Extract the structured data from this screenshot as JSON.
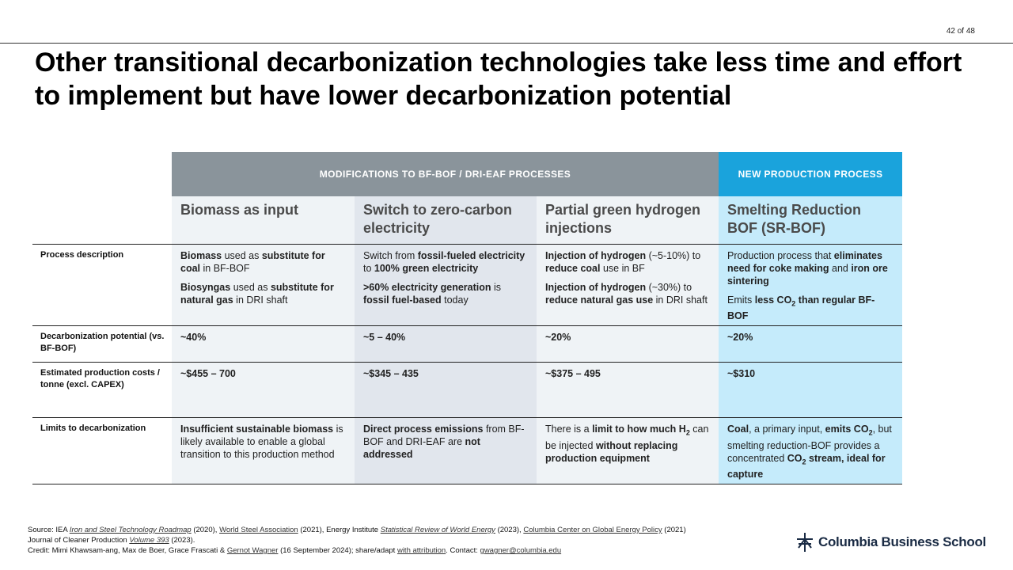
{
  "page_number": "42 of 48",
  "title": "Other transitional decarbonization technologies take less time and effort to implement but have lower decarbonization potential",
  "table": {
    "group_headers": {
      "modifications": "MODIFICATIONS TO BF-BOF / DRI-EAF PROCESSES",
      "new_process": "NEW PRODUCTION PROCESS"
    },
    "columns": [
      "Biomass as input",
      "Switch to zero-carbon electricity",
      "Partial green hydrogen injections",
      "Smelting Reduction BOF (SR-BOF)"
    ],
    "row_labels": {
      "process": "Process description",
      "decarb": "Decarbonization potential (vs. BF-BOF)",
      "costs": "Estimated production costs / tonne (excl. CAPEX)",
      "limits": "Limits to decarbonization"
    },
    "process": {
      "biomass": {
        "p1": [
          {
            "t": "Biomass",
            "b": true
          },
          {
            "t": " used as ",
            "b": false
          },
          {
            "t": "substitute for coal",
            "b": true
          },
          {
            "t": " in BF-BOF",
            "b": false
          }
        ],
        "p2": [
          {
            "t": "Biosyngas",
            "b": true
          },
          {
            "t": " used as ",
            "b": false
          },
          {
            "t": "substitute for natural gas",
            "b": true
          },
          {
            "t": " in DRI shaft",
            "b": false
          }
        ]
      },
      "electricity": {
        "p1": [
          {
            "t": "Switch from ",
            "b": false
          },
          {
            "t": "fossil-fueled electricity",
            "b": true
          },
          {
            "t": " to ",
            "b": false
          },
          {
            "t": "100% green electricity",
            "b": true
          }
        ],
        "p2": [
          {
            "t": ">60% electricity generation",
            "b": true
          },
          {
            "t": " is ",
            "b": false
          },
          {
            "t": "fossil fuel-based",
            "b": true
          },
          {
            "t": " today",
            "b": false
          }
        ]
      },
      "hydrogen": {
        "p1": [
          {
            "t": "Injection of hydrogen",
            "b": true
          },
          {
            "t": " (~5-10%) to ",
            "b": false
          },
          {
            "t": "reduce coal",
            "b": true
          },
          {
            "t": " use in BF",
            "b": false
          }
        ],
        "p2": [
          {
            "t": "Injection of hydrogen",
            "b": true
          },
          {
            "t": " (~30%) to ",
            "b": false
          },
          {
            "t": "reduce natural gas use",
            "b": true
          },
          {
            "t": " in DRI shaft",
            "b": false
          }
        ]
      },
      "srbof": {
        "p1": [
          {
            "t": "Production process that ",
            "b": false
          },
          {
            "t": "eliminates need for coke making",
            "b": true
          },
          {
            "t": " and ",
            "b": false
          },
          {
            "t": "iron ore sintering",
            "b": true
          }
        ],
        "p2": [
          {
            "t": "Emits ",
            "b": false
          },
          {
            "t": "less CO",
            "b": true
          },
          {
            "t": "2",
            "b": true,
            "sub": true
          },
          {
            "t": " than regular BF-BOF",
            "b": true
          }
        ]
      }
    },
    "decarb": [
      "~40%",
      "~5 – 40%",
      "~20%",
      "~20%"
    ],
    "costs": [
      "~$455 – 700",
      "~$345 – 435",
      "~$375 – 495",
      "~$310"
    ],
    "limits": {
      "biomass": [
        {
          "t": "Insufficient sustainable biomass",
          "b": true
        },
        {
          "t": " is likely available to enable a global transition to this production method",
          "b": false
        }
      ],
      "electricity": [
        {
          "t": "Direct process emissions",
          "b": true
        },
        {
          "t": " from BF-BOF and DRI-EAF are ",
          "b": false
        },
        {
          "t": "not addressed",
          "b": true
        }
      ],
      "hydrogen": [
        {
          "t": "There is a ",
          "b": false
        },
        {
          "t": "limit to how much H",
          "b": true
        },
        {
          "t": "2",
          "b": true,
          "sub": true
        },
        {
          "t": " can be injected ",
          "b": false
        },
        {
          "t": "without replacing production equipment",
          "b": true
        }
      ],
      "srbof": [
        {
          "t": "Coal",
          "b": true
        },
        {
          "t": ", a primary input, ",
          "b": false
        },
        {
          "t": "emits CO",
          "b": true
        },
        {
          "t": "2",
          "b": true,
          "sub": true
        },
        {
          "t": ", but smelting reduction-BOF provides a concentrated ",
          "b": false
        },
        {
          "t": "CO",
          "b": true
        },
        {
          "t": "2",
          "b": true,
          "sub": true
        },
        {
          "t": " stream, ideal for capture",
          "b": true
        }
      ]
    }
  },
  "footer": {
    "line1": [
      {
        "t": "Source: IEA ",
        "link": false
      },
      {
        "t": "Iron and Steel Technology Roadmap",
        "link": true,
        "italic": true
      },
      {
        "t": " (2020), ",
        "link": false
      },
      {
        "t": "World Steel Association",
        "link": true
      },
      {
        "t": " (2021), Energy Institute ",
        "link": false
      },
      {
        "t": "Statistical Review of World Energy",
        "link": true,
        "italic": true
      },
      {
        "t": " (2023), ",
        "link": false
      },
      {
        "t": "Columbia Center on Global Energy Policy",
        "link": true
      },
      {
        "t": " (2021)",
        "link": false
      }
    ],
    "line2": [
      {
        "t": "Journal of Cleaner Production ",
        "link": false
      },
      {
        "t": "Volume 393",
        "link": true,
        "italic": true
      },
      {
        "t": " (2023).",
        "link": false
      }
    ],
    "line3": [
      {
        "t": "Credit: Mimi Khawsam-ang, Max de Boer, Grace Frascati & ",
        "link": false
      },
      {
        "t": "Gernot Wagner",
        "link": true
      },
      {
        "t": " (16 September 2024); share/adapt ",
        "link": false
      },
      {
        "t": "with attribution",
        "link": true
      },
      {
        "t": ". Contact: ",
        "link": false
      },
      {
        "t": "gwagner@columbia.edu",
        "link": true
      }
    ]
  },
  "logo": {
    "text": "Columbia Business School",
    "icon": "columbia-crown-icon",
    "color": "#1a2b44"
  },
  "colors": {
    "group_modifications": "#8a949b",
    "group_new_process": "#1aa3dc",
    "col1": "#eff3f6",
    "col2": "#e1e6ed",
    "col3": "#eff3f6",
    "col4": "#c5ebfb"
  }
}
